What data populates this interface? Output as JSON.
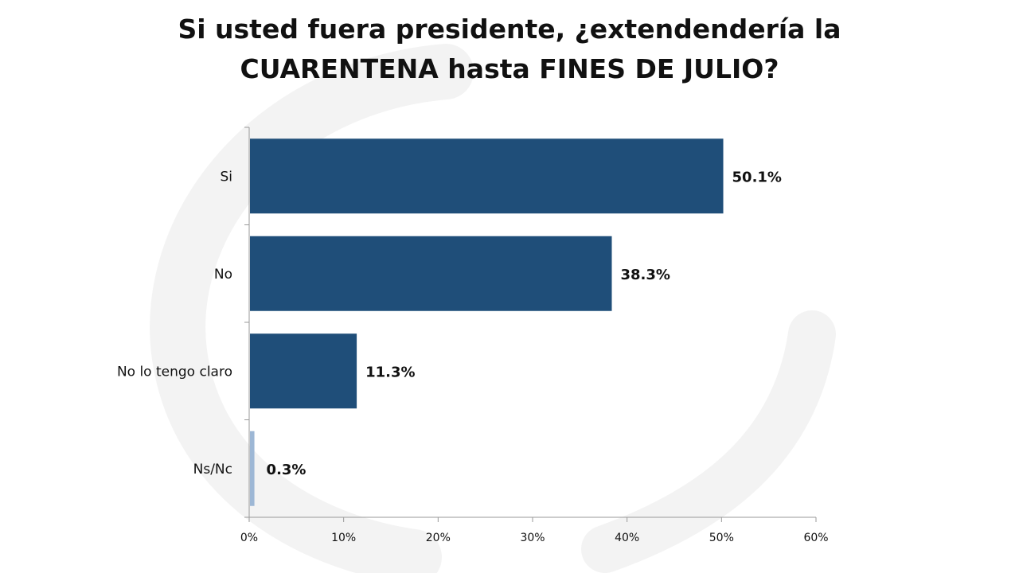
{
  "title": {
    "line1": "Si usted fuera presidente, ¿extendendería la",
    "line2": "CUARENTENA hasta FINES DE JULIO?"
  },
  "colors": {
    "bar": "#1f4e79",
    "bar_small": "#9db7d5",
    "axis": "#9a9a9a",
    "watermark": "#f2f2f2"
  },
  "chart_data": {
    "type": "bar",
    "orientation": "horizontal",
    "title": "Si usted fuera presidente, ¿extendendería la CUARENTENA hasta FINES DE JULIO?",
    "categories": [
      "Si",
      "No",
      "No lo tengo claro",
      "Ns/Nc"
    ],
    "values": [
      50.1,
      38.3,
      11.3,
      0.3
    ],
    "value_labels": [
      "50.1%",
      "38.3%",
      "11.3%",
      "0.3%"
    ],
    "xlim": [
      0,
      60
    ],
    "xticks": [
      0,
      10,
      20,
      30,
      40,
      50,
      60
    ],
    "xtick_labels": [
      "0%",
      "10%",
      "20%",
      "30%",
      "40%",
      "50%",
      "60%"
    ],
    "xlabel": "",
    "ylabel": "",
    "grid": false,
    "legend": "none"
  }
}
